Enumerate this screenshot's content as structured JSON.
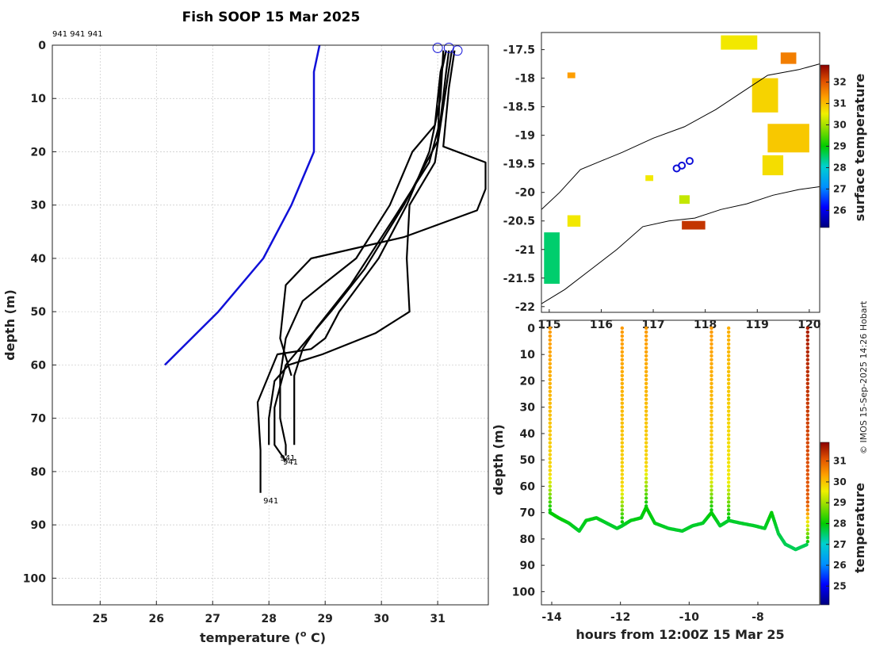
{
  "title": "Fish SOOP 15 Mar 2025",
  "credit": "© IMOS 15-Sep-2025 14:26 Hobart",
  "chart_data": [
    {
      "type": "line",
      "name": "temperature-depth-profiles",
      "xlabel": "temperature (° C)",
      "xlabel_main": "temperature (",
      "xlabel_unit": "o",
      "xlabel_rest": " C)",
      "ylabel": "depth (m)",
      "xlim": [
        24.15,
        31.9
      ],
      "ylim": [
        0,
        105
      ],
      "y_reversed": true,
      "grid": true,
      "xticks": [
        25,
        26,
        27,
        28,
        29,
        30,
        31
      ],
      "yticks": [
        0,
        10,
        20,
        30,
        40,
        50,
        60,
        70,
        80,
        90,
        100
      ],
      "top_annotation": "941 941 941",
      "end_annotations": [
        {
          "text": "941",
          "temp": 28.2,
          "depth": 77.5
        },
        {
          "text": "941",
          "temp": 28.25,
          "depth": 78.2
        },
        {
          "text": "941",
          "temp": 27.9,
          "depth": 85.5
        }
      ],
      "start_markers": [
        {
          "temp": 31.0,
          "depth": 0.5
        },
        {
          "temp": 31.2,
          "depth": 0.5
        },
        {
          "temp": 31.35,
          "depth": 1
        }
      ],
      "series": [
        {
          "name": "climatology",
          "color": "#1010d8",
          "temps": [
            28.9,
            28.8,
            28.8,
            28.8,
            28.4,
            27.9,
            27.1,
            26.15
          ],
          "depths": [
            0,
            5,
            10,
            20,
            30,
            40,
            50,
            60
          ]
        },
        {
          "name": "profile-1",
          "color": "#000000",
          "temps": [
            31.15,
            31.05,
            30.95,
            30.55,
            30.15,
            29.55,
            28.95,
            28.6,
            28.3,
            28.2,
            28.2,
            28.3,
            28.3
          ],
          "depths": [
            1,
            5,
            15,
            20,
            30,
            40,
            45,
            48,
            55,
            62,
            70,
            75,
            77
          ]
        },
        {
          "name": "profile-2",
          "color": "#000000",
          "temps": [
            31.15,
            31.05,
            31.0,
            30.8,
            30.4,
            29.7,
            29.1,
            28.7,
            28.3,
            28.1,
            28.1,
            28.3
          ],
          "depths": [
            1,
            6,
            18,
            22,
            30,
            42,
            50,
            55,
            60,
            68,
            75,
            78
          ]
        },
        {
          "name": "profile-3",
          "color": "#000000",
          "temps": [
            31.3,
            31.2,
            31.1,
            31.85,
            31.85,
            31.7,
            30.4,
            28.75,
            28.3,
            28.2,
            28.4
          ],
          "depths": [
            1,
            8,
            19,
            22,
            27,
            31,
            36,
            40,
            45,
            55,
            62
          ]
        },
        {
          "name": "profile-4",
          "color": "#000000",
          "temps": [
            31.2,
            31.15,
            31.05,
            30.85,
            30.25,
            29.45,
            28.85,
            28.6,
            28.45,
            28.45,
            28.45
          ],
          "depths": [
            1,
            5,
            14,
            22,
            32,
            45,
            53,
            57,
            62,
            68,
            75
          ]
        },
        {
          "name": "profile-5",
          "color": "#000000",
          "temps": [
            31.25,
            31.15,
            31.05,
            30.95,
            30.5,
            30.45,
            30.5,
            29.9,
            28.95,
            28.35,
            28.1,
            28.0,
            28.0
          ],
          "depths": [
            1,
            8,
            15,
            22,
            30,
            40,
            50,
            54,
            58,
            60,
            63,
            70,
            75
          ]
        },
        {
          "name": "profile-6",
          "color": "#000000",
          "temps": [
            31.1,
            31.05,
            30.85,
            30.45,
            29.95,
            29.25,
            29.0,
            28.75,
            28.15,
            27.8,
            27.85,
            27.85
          ],
          "depths": [
            1,
            10,
            20,
            30,
            40,
            50,
            55,
            57,
            58,
            67,
            76,
            84
          ]
        }
      ]
    },
    {
      "type": "heatmap",
      "name": "surface-temperature-map",
      "colorbar_label": "surface temperature",
      "xlim": [
        114.85,
        120.2
      ],
      "ylim": [
        -22.1,
        -17.2
      ],
      "xticks": [
        115,
        116,
        117,
        118,
        119,
        120
      ],
      "xtick_labels": [
        "115",
        "116",
        "117",
        "118",
        "119",
        "120"
      ],
      "yticks": [
        -17.5,
        -18,
        -18.5,
        -19,
        -19.5,
        -20,
        -20.5,
        -21,
        -21.5,
        -22
      ],
      "ytick_labels": [
        "-17.5",
        "-18",
        "-18.5",
        "-19",
        "-19.5",
        "-20",
        "-20.5",
        "-21",
        "-21.5",
        "-22"
      ],
      "colorbar_range": [
        25.2,
        32.8
      ],
      "colorbar_ticks": [
        26,
        27,
        28,
        29,
        30,
        31,
        32
      ],
      "track_points": [
        {
          "lon": 117.45,
          "lat": -19.58
        },
        {
          "lon": 117.55,
          "lat": -19.53
        },
        {
          "lon": 117.7,
          "lat": -19.45
        }
      ],
      "coastline": [
        [
          114.85,
          -20.3
        ],
        [
          115.2,
          -20.0
        ],
        [
          115.6,
          -19.6
        ],
        [
          116.0,
          -19.45
        ],
        [
          116.4,
          -19.3
        ],
        [
          117.0,
          -19.05
        ],
        [
          117.6,
          -18.85
        ],
        [
          118.2,
          -18.55
        ],
        [
          118.7,
          -18.25
        ],
        [
          119.2,
          -17.95
        ],
        [
          119.8,
          -17.85
        ],
        [
          120.2,
          -17.75
        ]
      ],
      "contour": [
        [
          114.85,
          -21.95
        ],
        [
          115.3,
          -21.7
        ],
        [
          115.8,
          -21.35
        ],
        [
          116.3,
          -21.0
        ],
        [
          116.8,
          -20.6
        ],
        [
          117.3,
          -20.5
        ],
        [
          117.8,
          -20.45
        ],
        [
          118.3,
          -20.3
        ],
        [
          118.8,
          -20.2
        ],
        [
          119.3,
          -20.05
        ],
        [
          119.8,
          -19.95
        ],
        [
          120.2,
          -19.9
        ]
      ],
      "sst_patches": [
        {
          "lon0": 114.9,
          "lon1": 115.2,
          "lat0": -21.6,
          "lat1": -20.7,
          "value": 28.5
        },
        {
          "lon0": 115.35,
          "lon1": 115.6,
          "lat0": -20.6,
          "lat1": -20.4,
          "value": 30.6
        },
        {
          "lon0": 117.55,
          "lon1": 118.0,
          "lat0": -20.65,
          "lat1": -20.5,
          "value": 32.3
        },
        {
          "lon0": 118.9,
          "lon1": 119.4,
          "lat0": -18.6,
          "lat1": -18.0,
          "value": 30.8
        },
        {
          "lon0": 119.2,
          "lon1": 120.0,
          "lat0": -19.3,
          "lat1": -18.8,
          "value": 30.9
        },
        {
          "lon0": 119.1,
          "lon1": 119.5,
          "lat0": -19.7,
          "lat1": -19.35,
          "value": 30.7
        },
        {
          "lon0": 118.3,
          "lon1": 119.0,
          "lat0": -17.5,
          "lat1": -17.25,
          "value": 30.6
        },
        {
          "lon0": 119.45,
          "lon1": 119.75,
          "lat0": -17.75,
          "lat1": -17.55,
          "value": 31.6
        },
        {
          "lon0": 117.5,
          "lon1": 117.7,
          "lat0": -20.2,
          "lat1": -20.05,
          "value": 30.2
        },
        {
          "lon0": 116.85,
          "lon1": 117.0,
          "lat0": -19.8,
          "lat1": -19.7,
          "value": 30.6
        },
        {
          "lon0": 115.35,
          "lon1": 115.5,
          "lat0": -18.0,
          "lat1": -17.9,
          "value": 31.3
        }
      ]
    },
    {
      "type": "scatter",
      "name": "depth-time-section",
      "xlabel": "hours from 12:00Z 15 Mar 25",
      "ylabel": "depth (m)",
      "colorbar_label": "temperature",
      "xlim": [
        -14.3,
        -6.2
      ],
      "ylim": [
        -3,
        105
      ],
      "y_reversed": true,
      "xticks": [
        -14,
        -12,
        -10,
        -8
      ],
      "yticks": [
        0,
        10,
        20,
        30,
        40,
        50,
        60,
        70,
        80,
        90,
        100
      ],
      "colorbar_range": [
        24.1,
        31.9
      ],
      "colorbar_ticks": [
        25,
        26,
        27,
        28,
        29,
        30,
        31
      ],
      "profile_casts": [
        {
          "hour": -14.05,
          "bottom": 70,
          "surface_temp": 30.4
        },
        {
          "hour": -11.95,
          "bottom": 75,
          "surface_temp": 30.4
        },
        {
          "hour": -11.25,
          "bottom": 68,
          "surface_temp": 30.4
        },
        {
          "hour": -9.35,
          "bottom": 70,
          "surface_temp": 30.4
        },
        {
          "hour": -8.85,
          "bottom": 73,
          "surface_temp": 30.2
        },
        {
          "hour": -6.55,
          "bottom": 82,
          "surface_temp": 31.6
        }
      ],
      "bottom_trace": {
        "hours": [
          -14.05,
          -13.8,
          -13.5,
          -13.2,
          -13.0,
          -12.7,
          -12.4,
          -12.1,
          -11.95,
          -11.7,
          -11.4,
          -11.25,
          -11.0,
          -10.6,
          -10.2,
          -9.9,
          -9.6,
          -9.35,
          -9.1,
          -8.85,
          -8.5,
          -8.1,
          -7.8,
          -7.6,
          -7.4,
          -7.2,
          -6.9,
          -6.55
        ],
        "depths": [
          70,
          72,
          74,
          77,
          73,
          72,
          74,
          76,
          75,
          73,
          72,
          68,
          74,
          76,
          77,
          75,
          74,
          70,
          75,
          73,
          74,
          75,
          76,
          70,
          78,
          82,
          84,
          82
        ],
        "temps": [
          28.0,
          28.0,
          27.9,
          27.8,
          27.9,
          27.9,
          27.8,
          27.8,
          27.8,
          27.9,
          27.9,
          28.0,
          27.9,
          27.8,
          27.8,
          27.8,
          27.8,
          28.0,
          27.8,
          27.8,
          27.8,
          27.8,
          27.8,
          28.0,
          27.7,
          27.6,
          27.6,
          27.6
        ]
      }
    }
  ]
}
